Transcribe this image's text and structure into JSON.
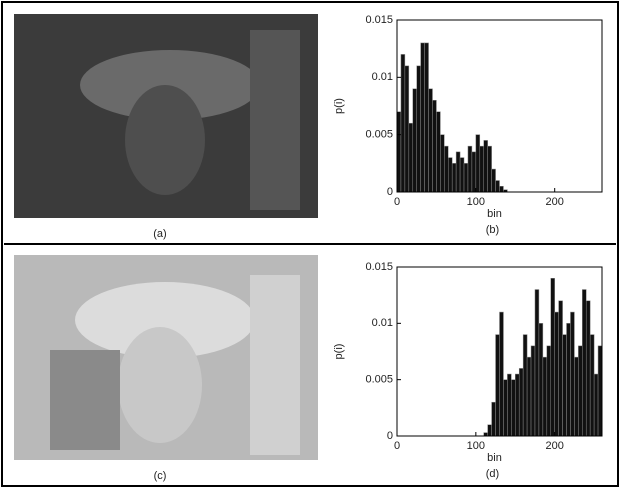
{
  "panels": [
    {
      "caption": "(a)"
    },
    {
      "caption": "(c)"
    }
  ],
  "chart_data": [
    {
      "type": "histogram",
      "caption": "(b)",
      "x_label": "bin",
      "y_label": "p(i)",
      "color": "#111111",
      "bins": [
        0,
        5,
        10,
        15,
        20,
        25,
        30,
        35,
        40,
        45,
        50,
        55,
        60,
        65,
        70,
        75,
        80,
        85,
        90,
        95,
        100,
        105,
        110,
        115,
        120,
        125,
        130,
        135,
        140
      ],
      "values": [
        0.007,
        0.012,
        0.011,
        0.006,
        0.009,
        0.011,
        0.013,
        0.013,
        0.009,
        0.008,
        0.007,
        0.005,
        0.004,
        0.003,
        0.0025,
        0.0035,
        0.003,
        0.0025,
        0.004,
        0.0035,
        0.005,
        0.004,
        0.0045,
        0.004,
        0.002,
        0.001,
        0.0005,
        0.0002
      ],
      "xlim": [
        0,
        260
      ],
      "ylim": [
        0,
        0.015
      ],
      "xticks": [
        0,
        100,
        200
      ],
      "yticks": [
        0,
        0.005,
        0.01,
        0.015
      ]
    },
    {
      "type": "histogram",
      "caption": "(d)",
      "x_label": "bin",
      "y_label": "p(i)",
      "color": "#111111",
      "bins": [
        110,
        115,
        120,
        125,
        130,
        135,
        140,
        145,
        150,
        155,
        160,
        165,
        170,
        175,
        180,
        185,
        190,
        195,
        200,
        205,
        210,
        215,
        220,
        225,
        230,
        235,
        240,
        245,
        250,
        255,
        260
      ],
      "values": [
        0.0003,
        0.001,
        0.003,
        0.009,
        0.011,
        0.005,
        0.0055,
        0.005,
        0.0055,
        0.006,
        0.009,
        0.007,
        0.008,
        0.013,
        0.01,
        0.007,
        0.008,
        0.014,
        0.011,
        0.012,
        0.009,
        0.01,
        0.011,
        0.007,
        0.008,
        0.013,
        0.012,
        0.009,
        0.0055,
        0.008
      ],
      "xlim": [
        0,
        260
      ],
      "ylim": [
        0,
        0.015
      ],
      "xticks": [
        0,
        100,
        200
      ],
      "yticks": [
        0,
        0.005,
        0.01,
        0.015
      ]
    }
  ]
}
